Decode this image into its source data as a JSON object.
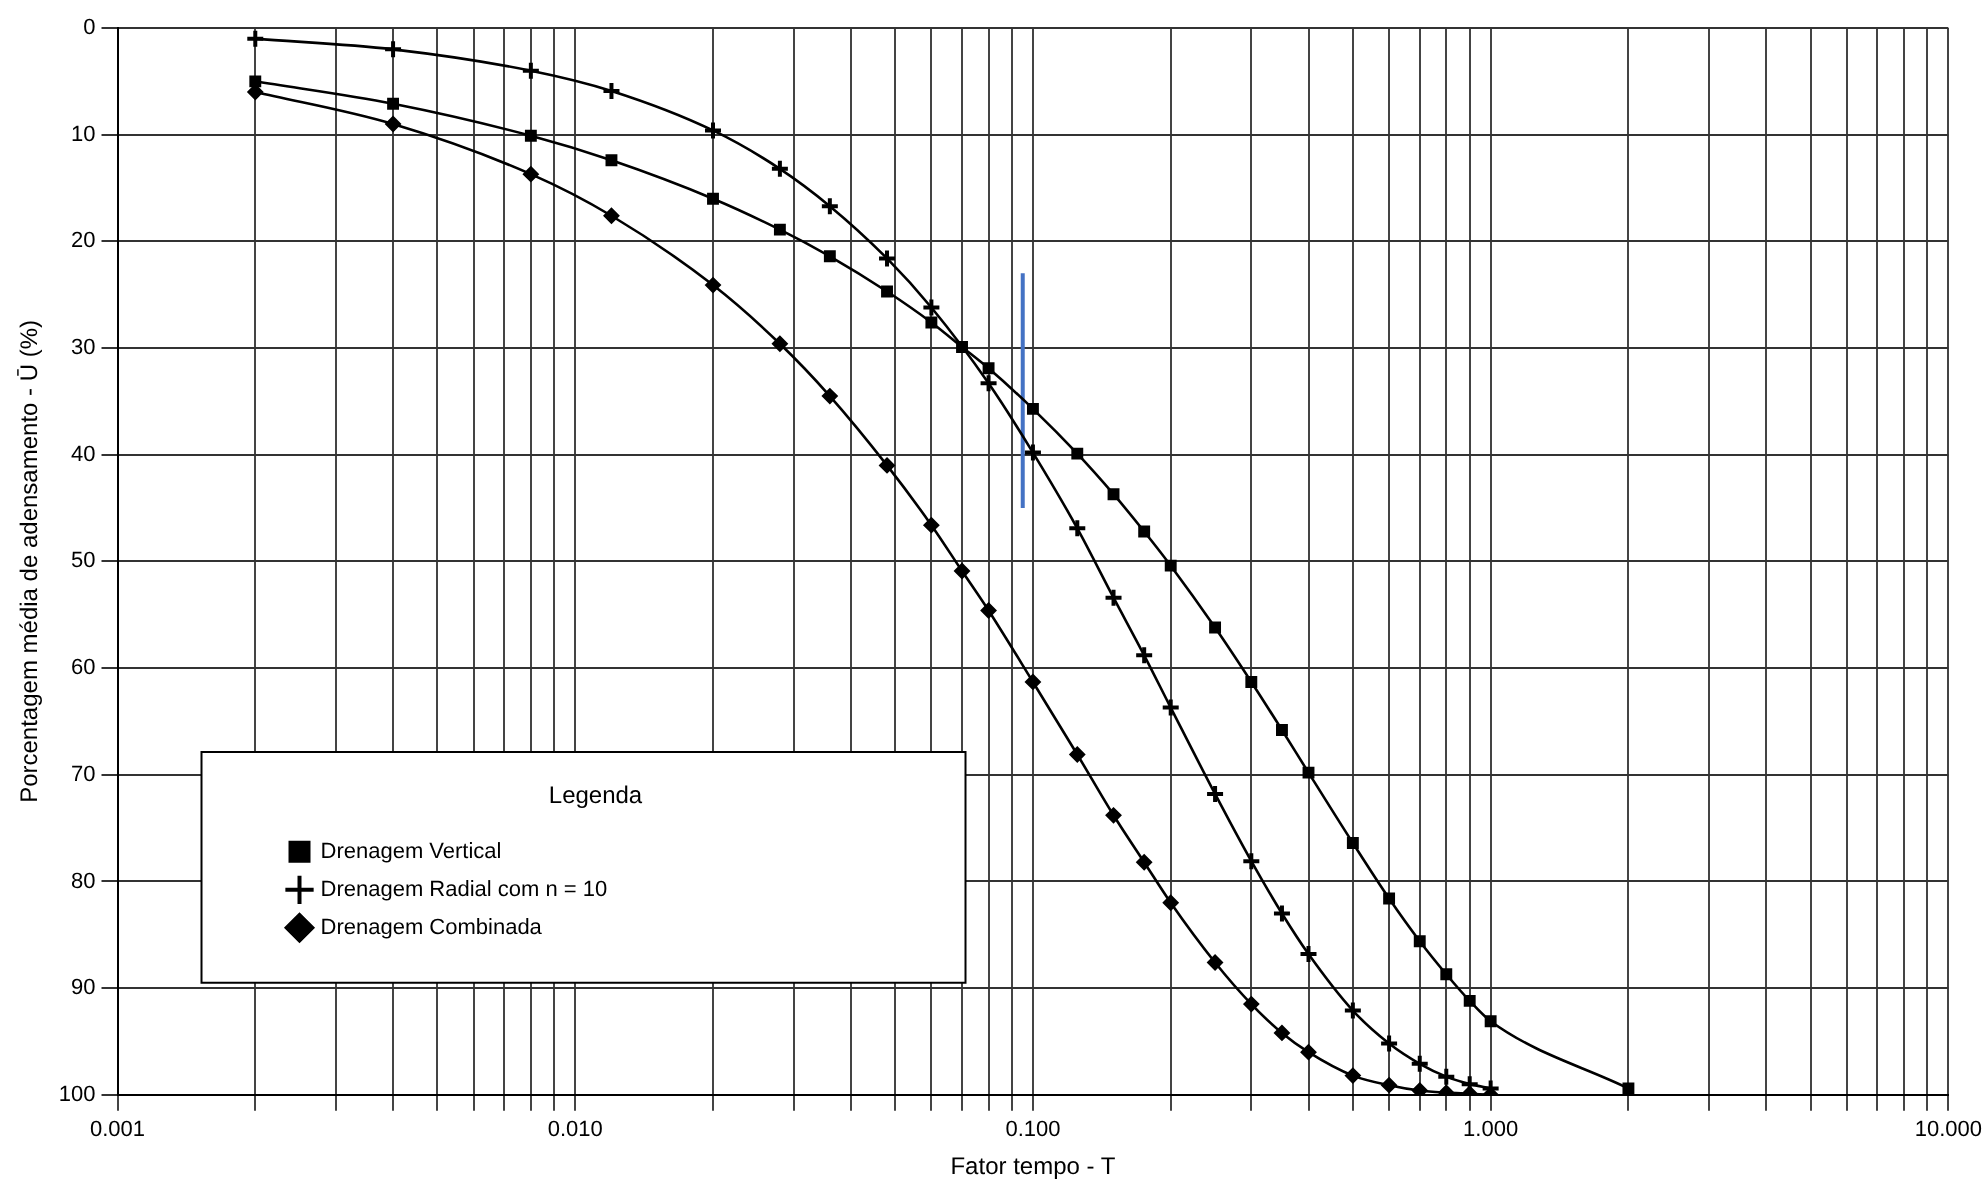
{
  "chart_data": {
    "type": "line",
    "xlabel": "Fator tempo - T",
    "ylabel": "Porcentagem média de adensamento - Ū (%)",
    "legend_title": "Legenda",
    "legend": "bottom left",
    "log": "x",
    "grid": true,
    "line_style": "solid",
    "xlim": [
      0.001,
      10
    ],
    "ylim": [
      100,
      0
    ],
    "xticks": [
      {
        "value": 0.001,
        "label": "0.001"
      },
      {
        "value": 0.002,
        "label": null
      },
      {
        "value": 0.003,
        "label": null
      },
      {
        "value": 0.004,
        "label": null
      },
      {
        "value": 0.005,
        "label": null
      },
      {
        "value": 0.006,
        "label": null
      },
      {
        "value": 0.007,
        "label": null
      },
      {
        "value": 0.008,
        "label": null
      },
      {
        "value": 0.009,
        "label": null
      },
      {
        "value": 0.01,
        "label": "0.010"
      },
      {
        "value": 0.02,
        "label": null
      },
      {
        "value": 0.03,
        "label": null
      },
      {
        "value": 0.04,
        "label": null
      },
      {
        "value": 0.05,
        "label": null
      },
      {
        "value": 0.06,
        "label": null
      },
      {
        "value": 0.07,
        "label": null
      },
      {
        "value": 0.08,
        "label": null
      },
      {
        "value": 0.09,
        "label": null
      },
      {
        "value": 0.1,
        "label": "0.100"
      },
      {
        "value": 0.2,
        "label": null
      },
      {
        "value": 0.3,
        "label": null
      },
      {
        "value": 0.4,
        "label": null
      },
      {
        "value": 0.5,
        "label": null
      },
      {
        "value": 0.6,
        "label": null
      },
      {
        "value": 0.7,
        "label": null
      },
      {
        "value": 0.8,
        "label": null
      },
      {
        "value": 0.9,
        "label": null
      },
      {
        "value": 1,
        "label": "1.000"
      },
      {
        "value": 2,
        "label": null
      },
      {
        "value": 3,
        "label": null
      },
      {
        "value": 4,
        "label": null
      },
      {
        "value": 5,
        "label": null
      },
      {
        "value": 6,
        "label": null
      },
      {
        "value": 7,
        "label": null
      },
      {
        "value": 8,
        "label": null
      },
      {
        "value": 9,
        "label": null
      },
      {
        "value": 10,
        "label": "10.000"
      }
    ],
    "yticks": [
      0,
      10,
      20,
      30,
      40,
      50,
      60,
      70,
      80,
      90,
      100
    ],
    "series": [
      {
        "name": "Drenagem Vertical",
        "color": "#000000",
        "marker": "square",
        "x": [
          0.002,
          0.004,
          0.008,
          0.012,
          0.02,
          0.028,
          0.036,
          0.048,
          0.06,
          0.07,
          0.08,
          0.1,
          0.125,
          0.15,
          0.175,
          0.2,
          0.25,
          0.3,
          0.35,
          0.4,
          0.5,
          0.6,
          0.7,
          0.8,
          0.9,
          1.0,
          2.0
        ],
        "values": [
          5,
          7.1,
          10.1,
          12.4,
          16,
          18.9,
          21.4,
          24.7,
          27.6,
          29.9,
          31.9,
          35.7,
          39.9,
          43.7,
          47.2,
          50.4,
          56.2,
          61.3,
          65.8,
          69.8,
          76.4,
          81.6,
          85.6,
          88.7,
          91.2,
          93.1,
          99.4
        ]
      },
      {
        "name": "Drenagem Radial com n = 10",
        "color": "#000000",
        "marker": "cross",
        "x": [
          0.002,
          0.004,
          0.008,
          0.012,
          0.02,
          0.028,
          0.036,
          0.048,
          0.06,
          0.08,
          0.1,
          0.125,
          0.15,
          0.175,
          0.2,
          0.25,
          0.3,
          0.35,
          0.4,
          0.5,
          0.6,
          0.7,
          0.8,
          0.9,
          1.0
        ],
        "values": [
          1,
          2,
          4,
          5.9,
          9.6,
          13.2,
          16.7,
          21.6,
          26.2,
          33.3,
          39.8,
          46.9,
          53.4,
          58.8,
          63.7,
          71.8,
          78.1,
          83,
          86.8,
          92.1,
          95.2,
          97.1,
          98.3,
          99,
          99.4
        ]
      },
      {
        "name": "Drenagem Combinada",
        "color": "#000000",
        "marker": "diamond",
        "x": [
          0.002,
          0.004,
          0.008,
          0.012,
          0.02,
          0.028,
          0.036,
          0.048,
          0.06,
          0.07,
          0.08,
          0.1,
          0.125,
          0.15,
          0.175,
          0.2,
          0.25,
          0.3,
          0.35,
          0.4,
          0.5,
          0.6,
          0.7,
          0.8,
          0.9,
          1.0
        ],
        "values": [
          6,
          9,
          13.7,
          17.6,
          24.1,
          29.6,
          34.5,
          41,
          46.6,
          50.9,
          54.6,
          61.3,
          68.1,
          73.8,
          78.2,
          82,
          87.6,
          91.5,
          94.2,
          96,
          98.2,
          99.1,
          99.6,
          99.8,
          99.9,
          100
        ]
      },
      {
        "color": "#4472c4",
        "marker": "none",
        "x": [
          0.095,
          0.095
        ],
        "values": [
          23,
          45
        ]
      }
    ]
  }
}
